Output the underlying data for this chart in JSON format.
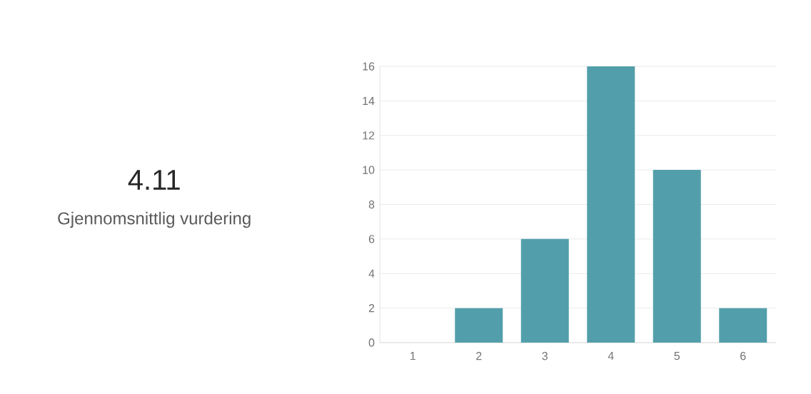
{
  "chart_data": [
    {
      "type": "other",
      "title": "4.11",
      "subtitle": "Gjennomsnittlig vurdering"
    },
    {
      "type": "bar",
      "categories": [
        "1",
        "2",
        "3",
        "4",
        "5",
        "6"
      ],
      "values": [
        0,
        2,
        6,
        16,
        10,
        2
      ],
      "color": "#529fab",
      "ylim": [
        0,
        16
      ],
      "yticks": [
        0,
        2,
        4,
        6,
        8,
        10,
        12,
        14,
        16
      ],
      "grid": "y"
    }
  ]
}
